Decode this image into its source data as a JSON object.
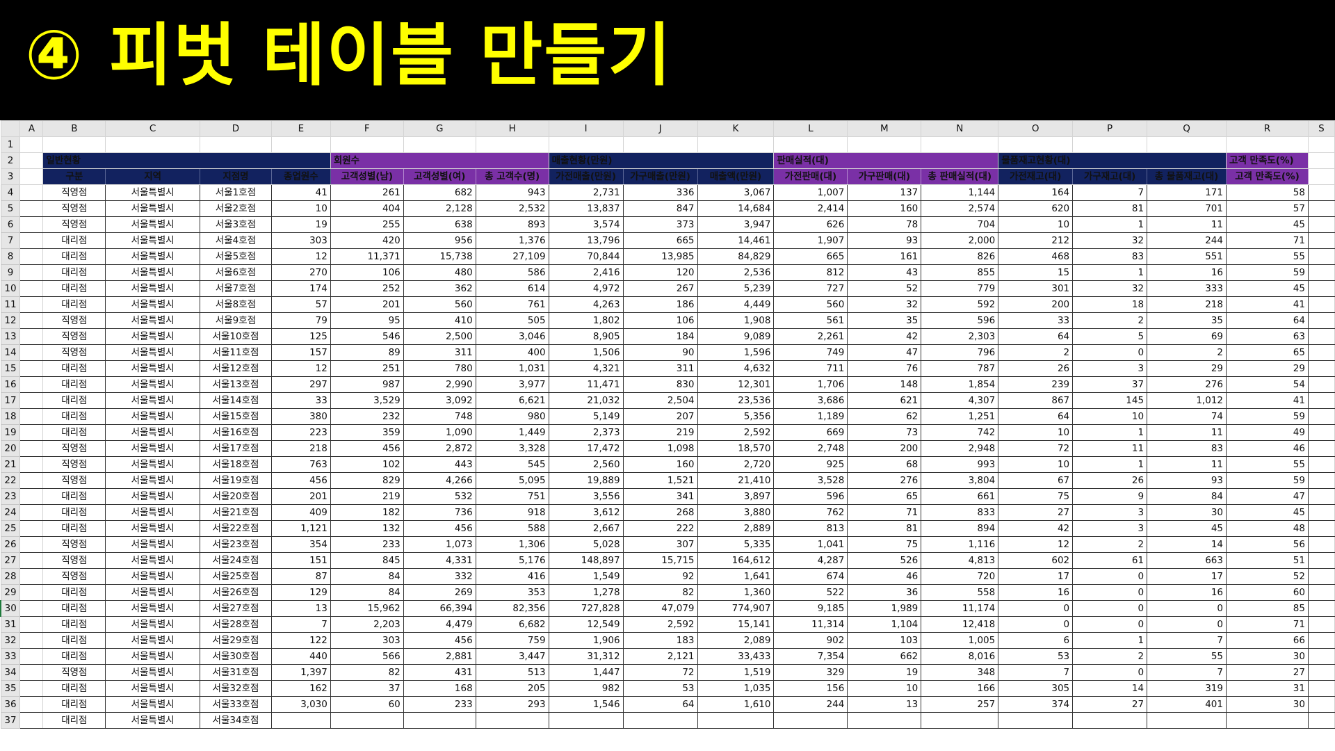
{
  "banner": {
    "title": "④ 피벗 테이블 만들기"
  },
  "sheet": {
    "columns": [
      "A",
      "B",
      "C",
      "D",
      "E",
      "F",
      "G",
      "H",
      "I",
      "J",
      "K",
      "L",
      "M",
      "N",
      "O",
      "P",
      "Q",
      "R",
      "S"
    ],
    "group_headers": {
      "general": "일반현황",
      "members": "회원수",
      "sales": "매출현황(만원)",
      "performance": "판매실적(대)",
      "stock": "물품재고현황(대)",
      "satisfaction": "고객 만족도(%)"
    },
    "field_headers": [
      "구분",
      "지역",
      "지점명",
      "종업원수",
      "고객성별(남)",
      "고객성별(여)",
      "총 고객수(명)",
      "가전매출(만원)",
      "가구매출(만원)",
      "매출액(만원)",
      "가전판매(대)",
      "가구판매(대)",
      "총 판매실적(대)",
      "가전재고(대)",
      "가구재고(대)",
      "총 물품재고(대)",
      "고객 만족도(%)"
    ],
    "selected_row": 30,
    "rows": [
      {
        "n": "4",
        "c": [
          "직영점",
          "서울특별시",
          "서울1호점",
          "41",
          "261",
          "682",
          "943",
          "2,731",
          "336",
          "3,067",
          "1,007",
          "137",
          "1,144",
          "164",
          "7",
          "171",
          "58"
        ]
      },
      {
        "n": "5",
        "c": [
          "직영점",
          "서울특별시",
          "서울2호점",
          "10",
          "404",
          "2,128",
          "2,532",
          "13,837",
          "847",
          "14,684",
          "2,414",
          "160",
          "2,574",
          "620",
          "81",
          "701",
          "57"
        ]
      },
      {
        "n": "6",
        "c": [
          "직영점",
          "서울특별시",
          "서울3호점",
          "19",
          "255",
          "638",
          "893",
          "3,574",
          "373",
          "3,947",
          "626",
          "78",
          "704",
          "10",
          "1",
          "11",
          "45"
        ]
      },
      {
        "n": "7",
        "c": [
          "대리점",
          "서울특별시",
          "서울4호점",
          "303",
          "420",
          "956",
          "1,376",
          "13,796",
          "665",
          "14,461",
          "1,907",
          "93",
          "2,000",
          "212",
          "32",
          "244",
          "71"
        ]
      },
      {
        "n": "8",
        "c": [
          "대리점",
          "서울특별시",
          "서울5호점",
          "12",
          "11,371",
          "15,738",
          "27,109",
          "70,844",
          "13,985",
          "84,829",
          "665",
          "161",
          "826",
          "468",
          "83",
          "551",
          "55"
        ]
      },
      {
        "n": "9",
        "c": [
          "대리점",
          "서울특별시",
          "서울6호점",
          "270",
          "106",
          "480",
          "586",
          "2,416",
          "120",
          "2,536",
          "812",
          "43",
          "855",
          "15",
          "1",
          "16",
          "59"
        ]
      },
      {
        "n": "10",
        "c": [
          "대리점",
          "서울특별시",
          "서울7호점",
          "174",
          "252",
          "362",
          "614",
          "4,972",
          "267",
          "5,239",
          "727",
          "52",
          "779",
          "301",
          "32",
          "333",
          "45"
        ]
      },
      {
        "n": "11",
        "c": [
          "대리점",
          "서울특별시",
          "서울8호점",
          "57",
          "201",
          "560",
          "761",
          "4,263",
          "186",
          "4,449",
          "560",
          "32",
          "592",
          "200",
          "18",
          "218",
          "41"
        ]
      },
      {
        "n": "12",
        "c": [
          "직영점",
          "서울특별시",
          "서울9호점",
          "79",
          "95",
          "410",
          "505",
          "1,802",
          "106",
          "1,908",
          "561",
          "35",
          "596",
          "33",
          "2",
          "35",
          "64"
        ]
      },
      {
        "n": "13",
        "c": [
          "직영점",
          "서울특별시",
          "서울10호점",
          "125",
          "546",
          "2,500",
          "3,046",
          "8,905",
          "184",
          "9,089",
          "2,261",
          "42",
          "2,303",
          "64",
          "5",
          "69",
          "63"
        ]
      },
      {
        "n": "14",
        "c": [
          "직영점",
          "서울특별시",
          "서울11호점",
          "157",
          "89",
          "311",
          "400",
          "1,506",
          "90",
          "1,596",
          "749",
          "47",
          "796",
          "2",
          "0",
          "2",
          "65"
        ]
      },
      {
        "n": "15",
        "c": [
          "대리점",
          "서울특별시",
          "서울12호점",
          "12",
          "251",
          "780",
          "1,031",
          "4,321",
          "311",
          "4,632",
          "711",
          "76",
          "787",
          "26",
          "3",
          "29",
          "29"
        ]
      },
      {
        "n": "16",
        "c": [
          "대리점",
          "서울특별시",
          "서울13호점",
          "297",
          "987",
          "2,990",
          "3,977",
          "11,471",
          "830",
          "12,301",
          "1,706",
          "148",
          "1,854",
          "239",
          "37",
          "276",
          "54"
        ]
      },
      {
        "n": "17",
        "c": [
          "대리점",
          "서울특별시",
          "서울14호점",
          "33",
          "3,529",
          "3,092",
          "6,621",
          "21,032",
          "2,504",
          "23,536",
          "3,686",
          "621",
          "4,307",
          "867",
          "145",
          "1,012",
          "41"
        ]
      },
      {
        "n": "18",
        "c": [
          "대리점",
          "서울특별시",
          "서울15호점",
          "380",
          "232",
          "748",
          "980",
          "5,149",
          "207",
          "5,356",
          "1,189",
          "62",
          "1,251",
          "64",
          "10",
          "74",
          "59"
        ]
      },
      {
        "n": "19",
        "c": [
          "대리점",
          "서울특별시",
          "서울16호점",
          "223",
          "359",
          "1,090",
          "1,449",
          "2,373",
          "219",
          "2,592",
          "669",
          "73",
          "742",
          "10",
          "1",
          "11",
          "49"
        ]
      },
      {
        "n": "20",
        "c": [
          "직영점",
          "서울특별시",
          "서울17호점",
          "218",
          "456",
          "2,872",
          "3,328",
          "17,472",
          "1,098",
          "18,570",
          "2,748",
          "200",
          "2,948",
          "72",
          "11",
          "83",
          "46"
        ]
      },
      {
        "n": "21",
        "c": [
          "직영점",
          "서울특별시",
          "서울18호점",
          "763",
          "102",
          "443",
          "545",
          "2,560",
          "160",
          "2,720",
          "925",
          "68",
          "993",
          "10",
          "1",
          "11",
          "55"
        ]
      },
      {
        "n": "22",
        "c": [
          "직영점",
          "서울특별시",
          "서울19호점",
          "456",
          "829",
          "4,266",
          "5,095",
          "19,889",
          "1,521",
          "21,410",
          "3,528",
          "276",
          "3,804",
          "67",
          "26",
          "93",
          "59"
        ]
      },
      {
        "n": "23",
        "c": [
          "대리점",
          "서울특별시",
          "서울20호점",
          "201",
          "219",
          "532",
          "751",
          "3,556",
          "341",
          "3,897",
          "596",
          "65",
          "661",
          "75",
          "9",
          "84",
          "47"
        ]
      },
      {
        "n": "24",
        "c": [
          "대리점",
          "서울특별시",
          "서울21호점",
          "409",
          "182",
          "736",
          "918",
          "3,612",
          "268",
          "3,880",
          "762",
          "71",
          "833",
          "27",
          "3",
          "30",
          "45"
        ]
      },
      {
        "n": "25",
        "c": [
          "대리점",
          "서울특별시",
          "서울22호점",
          "1,121",
          "132",
          "456",
          "588",
          "2,667",
          "222",
          "2,889",
          "813",
          "81",
          "894",
          "42",
          "3",
          "45",
          "48"
        ]
      },
      {
        "n": "26",
        "c": [
          "직영점",
          "서울특별시",
          "서울23호점",
          "354",
          "233",
          "1,073",
          "1,306",
          "5,028",
          "307",
          "5,335",
          "1,041",
          "75",
          "1,116",
          "12",
          "2",
          "14",
          "56"
        ]
      },
      {
        "n": "27",
        "c": [
          "직영점",
          "서울특별시",
          "서울24호점",
          "151",
          "845",
          "4,331",
          "5,176",
          "148,897",
          "15,715",
          "164,612",
          "4,287",
          "526",
          "4,813",
          "602",
          "61",
          "663",
          "51"
        ]
      },
      {
        "n": "28",
        "c": [
          "직영점",
          "서울특별시",
          "서울25호점",
          "87",
          "84",
          "332",
          "416",
          "1,549",
          "92",
          "1,641",
          "674",
          "46",
          "720",
          "17",
          "0",
          "17",
          "52"
        ]
      },
      {
        "n": "29",
        "c": [
          "대리점",
          "서울특별시",
          "서울26호점",
          "129",
          "84",
          "269",
          "353",
          "1,278",
          "82",
          "1,360",
          "522",
          "36",
          "558",
          "16",
          "0",
          "16",
          "60"
        ]
      },
      {
        "n": "30",
        "c": [
          "대리점",
          "서울특별시",
          "서울27호점",
          "13",
          "15,962",
          "66,394",
          "82,356",
          "727,828",
          "47,079",
          "774,907",
          "9,185",
          "1,989",
          "11,174",
          "0",
          "0",
          "0",
          "85"
        ]
      },
      {
        "n": "31",
        "c": [
          "대리점",
          "서울특별시",
          "서울28호점",
          "7",
          "2,203",
          "4,479",
          "6,682",
          "12,549",
          "2,592",
          "15,141",
          "11,314",
          "1,104",
          "12,418",
          "0",
          "0",
          "0",
          "71"
        ]
      },
      {
        "n": "32",
        "c": [
          "대리점",
          "서울특별시",
          "서울29호점",
          "122",
          "303",
          "456",
          "759",
          "1,906",
          "183",
          "2,089",
          "902",
          "103",
          "1,005",
          "6",
          "1",
          "7",
          "66"
        ]
      },
      {
        "n": "33",
        "c": [
          "대리점",
          "서울특별시",
          "서울30호점",
          "440",
          "566",
          "2,881",
          "3,447",
          "31,312",
          "2,121",
          "33,433",
          "7,354",
          "662",
          "8,016",
          "53",
          "2",
          "55",
          "30"
        ]
      },
      {
        "n": "34",
        "c": [
          "직영점",
          "서울특별시",
          "서울31호점",
          "1,397",
          "82",
          "431",
          "513",
          "1,447",
          "72",
          "1,519",
          "329",
          "19",
          "348",
          "7",
          "0",
          "7",
          "27"
        ]
      },
      {
        "n": "35",
        "c": [
          "대리점",
          "서울특별시",
          "서울32호점",
          "162",
          "37",
          "168",
          "205",
          "982",
          "53",
          "1,035",
          "156",
          "10",
          "166",
          "305",
          "14",
          "319",
          "31"
        ]
      },
      {
        "n": "36",
        "c": [
          "대리점",
          "서울특별시",
          "서울33호점",
          "3,030",
          "60",
          "233",
          "293",
          "1,546",
          "64",
          "1,610",
          "244",
          "13",
          "257",
          "374",
          "27",
          "401",
          "30"
        ]
      },
      {
        "n": "37",
        "c": [
          "대리점",
          "서울특별시",
          "서울34호점",
          "",
          "",
          "",
          "",
          "",
          "",
          "",
          "",
          "",
          "",
          "",
          "",
          "",
          ""
        ]
      }
    ]
  }
}
